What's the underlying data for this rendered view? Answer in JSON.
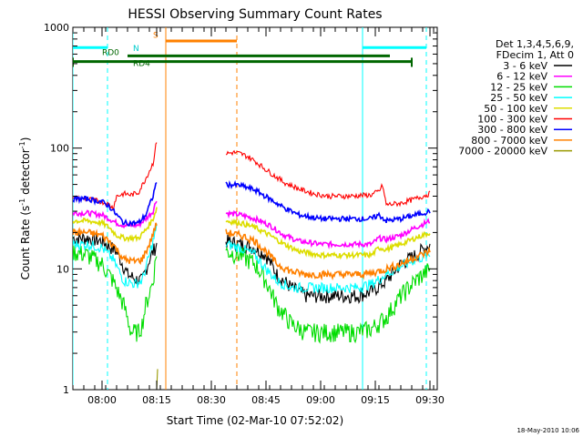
{
  "chart_data": {
    "type": "line",
    "title": "HESSI Observing Summary Count Rates",
    "xlabel": "Start Time (02-Mar-10 07:52:02)",
    "ylabel_main": "Count Rate (s",
    "ylabel_sup1": "-1",
    "ylabel_mid": " detector",
    "ylabel_sup2": "-1",
    "ylabel_end": ")",
    "y_scale": "log",
    "ylim": [
      1,
      1000
    ],
    "xlim_minutes": [
      0,
      100
    ],
    "yticks": [
      {
        "value": 1,
        "label": "1"
      },
      {
        "value": 10,
        "label": "10"
      },
      {
        "value": 100,
        "label": "100"
      },
      {
        "value": 1000,
        "label": "1000"
      }
    ],
    "xticks": [
      {
        "minute": 8,
        "label": "08:00"
      },
      {
        "minute": 23,
        "label": "08:15"
      },
      {
        "minute": 38,
        "label": "08:30"
      },
      {
        "minute": 53,
        "label": "08:45"
      },
      {
        "minute": 68,
        "label": "09:00"
      },
      {
        "minute": 83,
        "label": "09:15"
      },
      {
        "minute": 98,
        "label": "09:30"
      }
    ],
    "legend_header": [
      "Det 1,3,4,5,6,9,",
      "FDecim 1, Att 0"
    ],
    "legend_position": "right",
    "series": [
      {
        "name": "3 - 6 keV",
        "color": "#000000",
        "pre": [
          [
            0,
            18
          ],
          [
            4,
            18
          ],
          [
            8,
            17
          ],
          [
            12,
            14
          ],
          [
            15,
            9
          ],
          [
            18,
            8
          ],
          [
            19,
            8
          ],
          [
            21,
            12
          ],
          [
            23,
            16
          ]
        ],
        "post": [
          [
            42,
            17
          ],
          [
            46,
            16
          ],
          [
            50,
            15
          ],
          [
            53,
            13
          ],
          [
            56,
            9
          ],
          [
            60,
            7
          ],
          [
            64,
            6
          ],
          [
            70,
            6
          ],
          [
            78,
            6
          ],
          [
            82,
            6.5
          ],
          [
            86,
            8
          ],
          [
            90,
            11
          ],
          [
            94,
            13
          ],
          [
            98,
            16
          ]
        ]
      },
      {
        "name": "6 - 12 keV",
        "color": "#ff00ff",
        "pre": [
          [
            0,
            29
          ],
          [
            4,
            29
          ],
          [
            8,
            28
          ],
          [
            10,
            26
          ],
          [
            12,
            24
          ],
          [
            14,
            23
          ],
          [
            18,
            23
          ],
          [
            20,
            26
          ],
          [
            22,
            30
          ],
          [
            23,
            38
          ]
        ],
        "post": [
          [
            42,
            29
          ],
          [
            46,
            28
          ],
          [
            50,
            26
          ],
          [
            54,
            23
          ],
          [
            58,
            19
          ],
          [
            62,
            17
          ],
          [
            68,
            16
          ],
          [
            76,
            16
          ],
          [
            82,
            16
          ],
          [
            84,
            18
          ],
          [
            86,
            17.5
          ],
          [
            90,
            19
          ],
          [
            94,
            22
          ],
          [
            98,
            25
          ]
        ]
      },
      {
        "name": "12 - 25 keV",
        "color": "#00dd00",
        "pre": [
          [
            0,
            14
          ],
          [
            4,
            13
          ],
          [
            8,
            11
          ],
          [
            11,
            8
          ],
          [
            14,
            5
          ],
          [
            16,
            3
          ],
          [
            18,
            3
          ],
          [
            19,
            3.5
          ],
          [
            20,
            5
          ],
          [
            22,
            8
          ],
          [
            23,
            14
          ]
        ],
        "post": [
          [
            42,
            14
          ],
          [
            46,
            13
          ],
          [
            50,
            11
          ],
          [
            53,
            8
          ],
          [
            56,
            5
          ],
          [
            60,
            3.5
          ],
          [
            64,
            3
          ],
          [
            70,
            3
          ],
          [
            78,
            3
          ],
          [
            82,
            3.2
          ],
          [
            86,
            4
          ],
          [
            90,
            6
          ],
          [
            94,
            8
          ],
          [
            98,
            10
          ]
        ]
      },
      {
        "name": "25 - 50 keV",
        "color": "#00ffff",
        "pre": [
          [
            0,
            16
          ],
          [
            4,
            16
          ],
          [
            8,
            15
          ],
          [
            11,
            12
          ],
          [
            14,
            8
          ],
          [
            17,
            7.5
          ],
          [
            19,
            8
          ],
          [
            21,
            13
          ],
          [
            23,
            22
          ]
        ],
        "post": [
          [
            42,
            16
          ],
          [
            46,
            15
          ],
          [
            50,
            13
          ],
          [
            53,
            10
          ],
          [
            56,
            8
          ],
          [
            60,
            7
          ],
          [
            64,
            7
          ],
          [
            70,
            7
          ],
          [
            78,
            7
          ],
          [
            82,
            7.5
          ],
          [
            86,
            9
          ],
          [
            90,
            10.5
          ],
          [
            94,
            12
          ],
          [
            98,
            13
          ]
        ]
      },
      {
        "name": "50 - 100 keV",
        "color": "#dddd00",
        "pre": [
          [
            0,
            25
          ],
          [
            4,
            25
          ],
          [
            8,
            24
          ],
          [
            10,
            22
          ],
          [
            12,
            19
          ],
          [
            14,
            18
          ],
          [
            18,
            18
          ],
          [
            20,
            21
          ],
          [
            22,
            26
          ],
          [
            23,
            32
          ]
        ],
        "post": [
          [
            42,
            25
          ],
          [
            46,
            24
          ],
          [
            50,
            22
          ],
          [
            54,
            19
          ],
          [
            58,
            16
          ],
          [
            62,
            14
          ],
          [
            68,
            13
          ],
          [
            76,
            13
          ],
          [
            82,
            13
          ],
          [
            84,
            15
          ],
          [
            86,
            14.5
          ],
          [
            90,
            16
          ],
          [
            94,
            18
          ],
          [
            98,
            20
          ]
        ]
      },
      {
        "name": "100 - 300 keV",
        "color": "#ff0000",
        "pre": [
          [
            0,
            38
          ],
          [
            4,
            38
          ],
          [
            8,
            36
          ],
          [
            10,
            34
          ],
          [
            11,
            32
          ],
          [
            12,
            40
          ],
          [
            14,
            42
          ],
          [
            16,
            41
          ],
          [
            18,
            43
          ],
          [
            20,
            56
          ],
          [
            22,
            75
          ],
          [
            23,
            115
          ]
        ],
        "post": [
          [
            42,
            90
          ],
          [
            44,
            92
          ],
          [
            46,
            90
          ],
          [
            48,
            85
          ],
          [
            50,
            78
          ],
          [
            52,
            70
          ],
          [
            55,
            60
          ],
          [
            58,
            52
          ],
          [
            62,
            46
          ],
          [
            66,
            42
          ],
          [
            70,
            40
          ],
          [
            76,
            40
          ],
          [
            82,
            41
          ],
          [
            84,
            44
          ],
          [
            85,
            49
          ],
          [
            86,
            34
          ],
          [
            90,
            35
          ],
          [
            94,
            38
          ],
          [
            98,
            42
          ]
        ]
      },
      {
        "name": "300 - 800 keV",
        "color": "#0000ff",
        "pre": [
          [
            0,
            38
          ],
          [
            4,
            38
          ],
          [
            8,
            36
          ],
          [
            10,
            33
          ],
          [
            12,
            28
          ],
          [
            14,
            24
          ],
          [
            18,
            24
          ],
          [
            20,
            28
          ],
          [
            22,
            40
          ],
          [
            23,
            54
          ]
        ],
        "post": [
          [
            42,
            50
          ],
          [
            46,
            49
          ],
          [
            50,
            45
          ],
          [
            54,
            38
          ],
          [
            58,
            32
          ],
          [
            62,
            28
          ],
          [
            68,
            26
          ],
          [
            76,
            26
          ],
          [
            82,
            26
          ],
          [
            84,
            28
          ],
          [
            86,
            25
          ],
          [
            90,
            26
          ],
          [
            94,
            28
          ],
          [
            98,
            30
          ]
        ]
      },
      {
        "name": "800 - 7000 keV",
        "color": "#ff8000",
        "pre": [
          [
            0,
            20
          ],
          [
            4,
            20
          ],
          [
            8,
            19
          ],
          [
            11,
            16
          ],
          [
            14,
            12
          ],
          [
            17,
            11.5
          ],
          [
            19,
            12
          ],
          [
            21,
            16
          ],
          [
            23,
            24
          ]
        ],
        "post": [
          [
            42,
            20
          ],
          [
            46,
            19
          ],
          [
            50,
            17
          ],
          [
            53,
            14
          ],
          [
            56,
            11
          ],
          [
            60,
            9.5
          ],
          [
            64,
            9
          ],
          [
            70,
            9
          ],
          [
            78,
            9
          ],
          [
            82,
            9.2
          ],
          [
            86,
            10
          ],
          [
            90,
            11
          ],
          [
            94,
            12.5
          ],
          [
            98,
            14
          ]
        ]
      },
      {
        "name": "7000 - 20000 keV",
        "color": "#999900",
        "pre": [
          [
            23,
            1
          ],
          [
            23.4,
            2
          ]
        ],
        "post": []
      }
    ],
    "flags": {
      "saa_label": "S",
      "night_label": "N",
      "rd0_label": "RD0",
      "rd4_label": "RD4"
    }
  },
  "timestamp": "18-May-2010 10:06"
}
